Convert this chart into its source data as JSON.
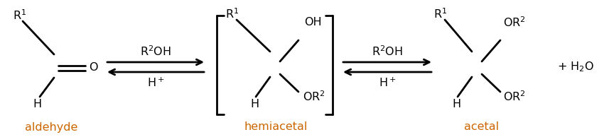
{
  "bg_color": "#ffffff",
  "text_color": "#000000",
  "label_color": "#cc6600",
  "fig_width": 8.57,
  "fig_height": 1.94,
  "dpi": 100,
  "aldehyde_label": "aldehyde",
  "hemiacetal_label": "hemiacetal",
  "acetal_label": "acetal"
}
